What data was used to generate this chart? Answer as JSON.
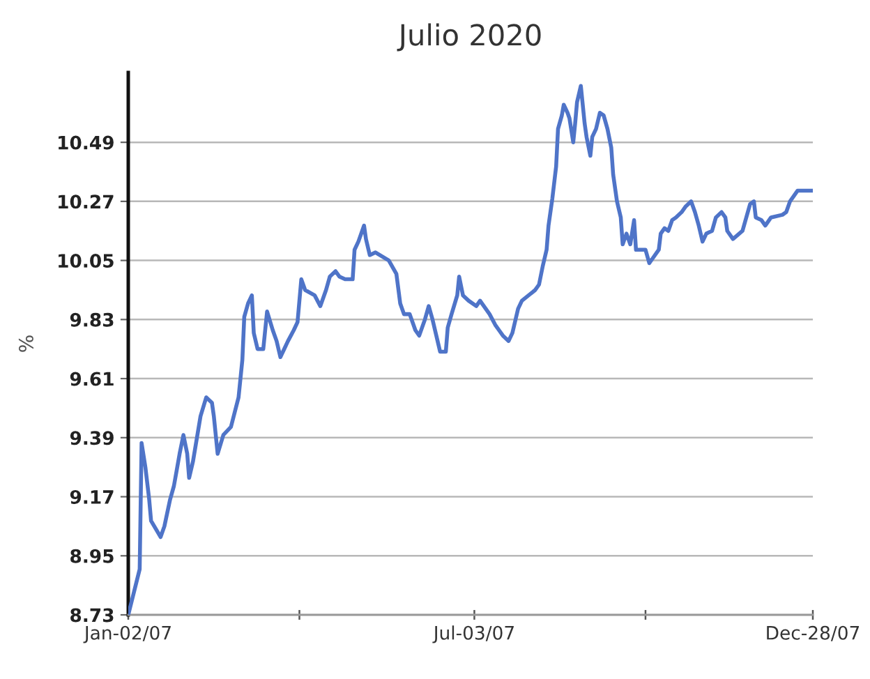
{
  "chart_data": {
    "type": "line",
    "title": "Julio 2020",
    "ylabel": "%",
    "x": [
      "2007-01-02",
      "2007-01-08",
      "2007-01-09",
      "2007-01-11",
      "2007-01-13",
      "2007-01-14",
      "2007-01-19",
      "2007-01-21",
      "2007-01-24",
      "2007-01-26",
      "2007-01-29",
      "2007-01-31",
      "2007-02-02",
      "2007-02-03",
      "2007-02-05",
      "2007-02-09",
      "2007-02-12",
      "2007-02-15",
      "2007-02-16",
      "2007-02-18",
      "2007-02-21",
      "2007-02-25",
      "2007-03-01",
      "2007-03-03",
      "2007-03-04",
      "2007-03-06",
      "2007-03-08",
      "2007-03-09",
      "2007-03-11",
      "2007-03-14",
      "2007-03-16",
      "2007-03-19",
      "2007-03-21",
      "2007-03-23",
      "2007-03-25",
      "2007-03-27",
      "2007-03-30",
      "2007-04-01",
      "2007-04-03",
      "2007-04-05",
      "2007-04-10",
      "2007-04-13",
      "2007-04-16",
      "2007-04-18",
      "2007-04-21",
      "2007-04-23",
      "2007-04-26",
      "2007-04-30",
      "2007-05-01",
      "2007-05-03",
      "2007-05-06",
      "2007-05-07",
      "2007-05-09",
      "2007-05-12",
      "2007-05-19",
      "2007-05-23",
      "2007-05-25",
      "2007-05-27",
      "2007-05-30",
      "2007-06-02",
      "2007-06-04",
      "2007-06-07",
      "2007-06-09",
      "2007-06-11",
      "2007-06-14",
      "2007-06-15",
      "2007-06-18",
      "2007-06-19",
      "2007-06-21",
      "2007-06-24",
      "2007-06-25",
      "2007-06-27",
      "2007-06-30",
      "2007-07-04",
      "2007-07-06",
      "2007-07-11",
      "2007-07-14",
      "2007-07-16",
      "2007-07-18",
      "2007-07-21",
      "2007-07-23",
      "2007-07-26",
      "2007-07-28",
      "2007-08-04",
      "2007-08-06",
      "2007-08-08",
      "2007-08-10",
      "2007-08-11",
      "2007-08-13",
      "2007-08-15",
      "2007-08-16",
      "2007-08-18",
      "2007-08-19",
      "2007-08-21",
      "2007-08-22",
      "2007-08-24",
      "2007-08-25",
      "2007-08-26",
      "2007-08-28",
      "2007-08-29",
      "2007-08-30",
      "2007-08-31",
      "2007-09-02",
      "2007-09-03",
      "2007-09-05",
      "2007-09-07",
      "2007-09-09",
      "2007-09-11",
      "2007-09-13",
      "2007-09-14",
      "2007-09-16",
      "2007-09-18",
      "2007-09-19",
      "2007-09-21",
      "2007-09-23",
      "2007-09-25",
      "2007-09-26",
      "2007-10-01",
      "2007-10-03",
      "2007-10-05",
      "2007-10-08",
      "2007-10-09",
      "2007-10-11",
      "2007-10-13",
      "2007-10-15",
      "2007-10-17",
      "2007-10-20",
      "2007-10-22",
      "2007-10-25",
      "2007-10-27",
      "2007-10-29",
      "2007-10-31",
      "2007-11-02",
      "2007-11-05",
      "2007-11-07",
      "2007-11-10",
      "2007-11-12",
      "2007-11-13",
      "2007-11-16",
      "2007-11-21",
      "2007-11-23",
      "2007-11-25",
      "2007-11-27",
      "2007-11-28",
      "2007-12-01",
      "2007-12-03",
      "2007-12-06",
      "2007-12-12",
      "2007-12-14",
      "2007-12-16",
      "2007-12-18",
      "2007-12-20",
      "2007-12-28"
    ],
    "values": [
      8.73,
      8.9,
      9.37,
      9.28,
      9.16,
      9.08,
      9.02,
      9.06,
      9.16,
      9.21,
      9.33,
      9.4,
      9.33,
      9.24,
      9.3,
      9.47,
      9.54,
      9.52,
      9.47,
      9.33,
      9.4,
      9.43,
      9.54,
      9.68,
      9.84,
      9.89,
      9.92,
      9.78,
      9.72,
      9.72,
      9.86,
      9.79,
      9.75,
      9.69,
      9.72,
      9.75,
      9.79,
      9.82,
      9.98,
      9.94,
      9.92,
      9.88,
      9.94,
      9.99,
      10.01,
      9.99,
      9.98,
      9.98,
      10.09,
      10.12,
      10.18,
      10.13,
      10.07,
      10.08,
      10.05,
      10.0,
      9.89,
      9.85,
      9.85,
      9.79,
      9.77,
      9.83,
      9.88,
      9.83,
      9.74,
      9.71,
      9.71,
      9.8,
      9.85,
      9.92,
      9.99,
      9.92,
      9.9,
      9.88,
      9.9,
      9.85,
      9.81,
      9.79,
      9.77,
      9.75,
      9.78,
      9.87,
      9.9,
      9.94,
      9.96,
      10.03,
      10.09,
      10.18,
      10.28,
      10.4,
      10.54,
      10.59,
      10.63,
      10.6,
      10.58,
      10.49,
      10.56,
      10.64,
      10.7,
      10.63,
      10.56,
      10.51,
      10.44,
      10.51,
      10.54,
      10.6,
      10.59,
      10.54,
      10.47,
      10.37,
      10.27,
      10.21,
      10.11,
      10.15,
      10.11,
      10.2,
      10.09,
      10.09,
      10.04,
      10.06,
      10.09,
      10.15,
      10.17,
      10.16,
      10.2,
      10.21,
      10.23,
      10.25,
      10.27,
      10.23,
      10.18,
      10.12,
      10.15,
      10.16,
      10.21,
      10.23,
      10.21,
      10.16,
      10.13,
      10.16,
      10.21,
      10.26,
      10.27,
      10.21,
      10.2,
      10.18,
      10.21,
      10.22,
      10.23,
      10.27,
      10.29,
      10.31,
      10.31
    ],
    "color": "#4f74c8",
    "line_style": "solid",
    "xlim": [
      "2007-01-02",
      "2007-12-28"
    ],
    "xticks": [
      {
        "value": "2007-01-02",
        "label": "Jan-02/07"
      },
      {
        "value": "2007-04-02",
        "label": null
      },
      {
        "value": "2007-07-03",
        "label": "Jul-03/07"
      },
      {
        "value": "2007-10-01",
        "label": null
      },
      {
        "value": "2007-12-28",
        "label": "Dec-28/07"
      }
    ],
    "ylim": [
      8.73,
      10.75
    ],
    "yticks": [
      8.73,
      8.95,
      9.17,
      9.39,
      9.61,
      9.83,
      10.05,
      10.27,
      10.49
    ],
    "grid": "y"
  }
}
